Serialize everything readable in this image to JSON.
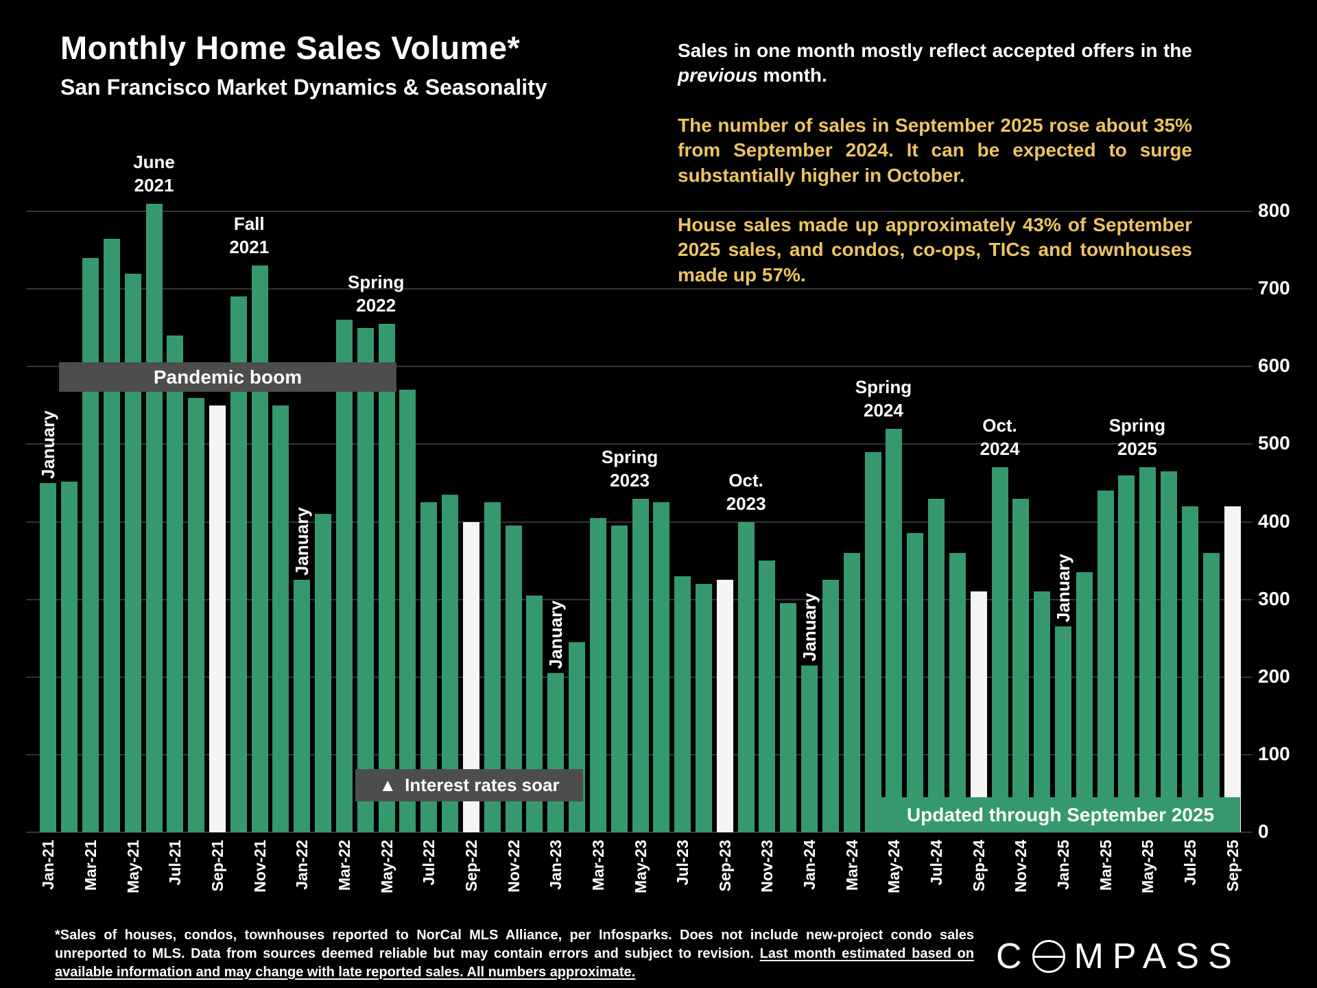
{
  "header": {
    "title": "Monthly Home Sales Volume*",
    "subtitle": "San Francisco Market Dynamics & Seasonality"
  },
  "commentary": {
    "intro_pre": "Sales in one month mostly reflect accepted offers in the ",
    "intro_italic": "previous",
    "intro_post": " month.",
    "para2": "The number of sales in September 2025 rose about 35% from September 2024. It can be expected to surge substantially higher in October.",
    "para3": "House sales made up approximately 43% of September 2025 sales, and condos, co-ops, TICs and townhouses made up 57%."
  },
  "banners": {
    "pandemic": "Pandemic boom",
    "rates_icon": "▲",
    "rates_text": "Interest rates soar",
    "updated": "Updated through September 2025"
  },
  "colors": {
    "background": "#000000",
    "accent_yellow": "#eec45e",
    "banner_gray": "#4d4d4d",
    "bar_green": "#36996e",
    "bar_highlight_white": "#f5f5f3"
  },
  "chart_data": {
    "type": "bar",
    "title": "Monthly Home Sales Volume*",
    "subtitle": "San Francisco Market Dynamics & Seasonality",
    "ylabel": "",
    "xlabel": "",
    "ylim": [
      0,
      800
    ],
    "yticks": [
      0,
      100,
      200,
      300,
      400,
      500,
      600,
      700,
      800
    ],
    "grid": true,
    "legend": "none",
    "y_axis_side": "right",
    "x_tick_every": 2,
    "bar_color": "#36996e",
    "highlight_color": "#f5f5f3",
    "highlighted_months": [
      "Sep-21",
      "Sep-22",
      "Sep-23",
      "Sep-24",
      "Sep-25"
    ],
    "categories": [
      "Jan-21",
      "Feb-21",
      "Mar-21",
      "Apr-21",
      "May-21",
      "Jun-21",
      "Jul-21",
      "Aug-21",
      "Sep-21",
      "Oct-21",
      "Nov-21",
      "Dec-21",
      "Jan-22",
      "Feb-22",
      "Mar-22",
      "Apr-22",
      "May-22",
      "Jun-22",
      "Jul-22",
      "Aug-22",
      "Sep-22",
      "Oct-22",
      "Nov-22",
      "Dec-22",
      "Jan-23",
      "Feb-23",
      "Mar-23",
      "Apr-23",
      "May-23",
      "Jun-23",
      "Jul-23",
      "Aug-23",
      "Sep-23",
      "Oct-23",
      "Nov-23",
      "Dec-23",
      "Jan-24",
      "Feb-24",
      "Mar-24",
      "Apr-24",
      "May-24",
      "Jun-24",
      "Jul-24",
      "Aug-24",
      "Sep-24",
      "Oct-24",
      "Nov-24",
      "Dec-24",
      "Jan-25",
      "Feb-25",
      "Mar-25",
      "Apr-25",
      "May-25",
      "Jun-25",
      "Jul-25",
      "Aug-25",
      "Sep-25"
    ],
    "values": [
      450,
      452,
      740,
      765,
      720,
      810,
      640,
      560,
      550,
      690,
      730,
      550,
      325,
      410,
      660,
      650,
      655,
      570,
      425,
      435,
      400,
      425,
      395,
      305,
      205,
      245,
      405,
      395,
      430,
      425,
      330,
      320,
      325,
      400,
      350,
      295,
      215,
      325,
      360,
      490,
      520,
      385,
      430,
      360,
      310,
      470,
      430,
      310,
      265,
      335,
      440,
      460,
      470,
      465,
      420,
      360,
      420
    ],
    "annotations": [
      {
        "lines": [
          "June",
          "2021"
        ],
        "anchor": [
          "Jun-21"
        ]
      },
      {
        "lines": [
          "Fall",
          "2021"
        ],
        "anchor": [
          "Oct-21",
          "Nov-21"
        ]
      },
      {
        "lines": [
          "Spring",
          "2022"
        ],
        "anchor": [
          "Apr-22",
          "May-22"
        ]
      },
      {
        "lines": [
          "Spring",
          "2023"
        ],
        "anchor": [
          "Apr-23",
          "May-23"
        ]
      },
      {
        "lines": [
          "Oct.",
          "2023"
        ],
        "anchor": [
          "Oct-23"
        ]
      },
      {
        "lines": [
          "Spring",
          "2024"
        ],
        "anchor": [
          "Apr-24",
          "May-24"
        ]
      },
      {
        "lines": [
          "Oct.",
          "2024"
        ],
        "anchor": [
          "Oct-24"
        ]
      },
      {
        "lines": [
          "Spring",
          "2025"
        ],
        "anchor": [
          "Apr-25",
          "May-25"
        ]
      }
    ],
    "january_labels": [
      {
        "text": "January",
        "anchor": "Jan-21"
      },
      {
        "text": "January",
        "anchor": "Jan-22"
      },
      {
        "text": "January",
        "anchor": "Jan-23"
      },
      {
        "text": "January",
        "anchor": "Jan-24"
      },
      {
        "text": "January",
        "anchor": "Jan-25"
      }
    ]
  },
  "footnote": {
    "normal": "*Sales of houses, condos, townhouses reported to NorCal MLS Alliance, per Infosparks. Does not include new-project condo sales unreported to MLS. Data from sources deemed reliable but may contain errors and subject to revision. ",
    "underlined": "Last month estimated based on available information and may change with late reported sales. All numbers approximate."
  },
  "logo": {
    "full": "COMPASS",
    "first": "C",
    "rest": "MPASS"
  }
}
